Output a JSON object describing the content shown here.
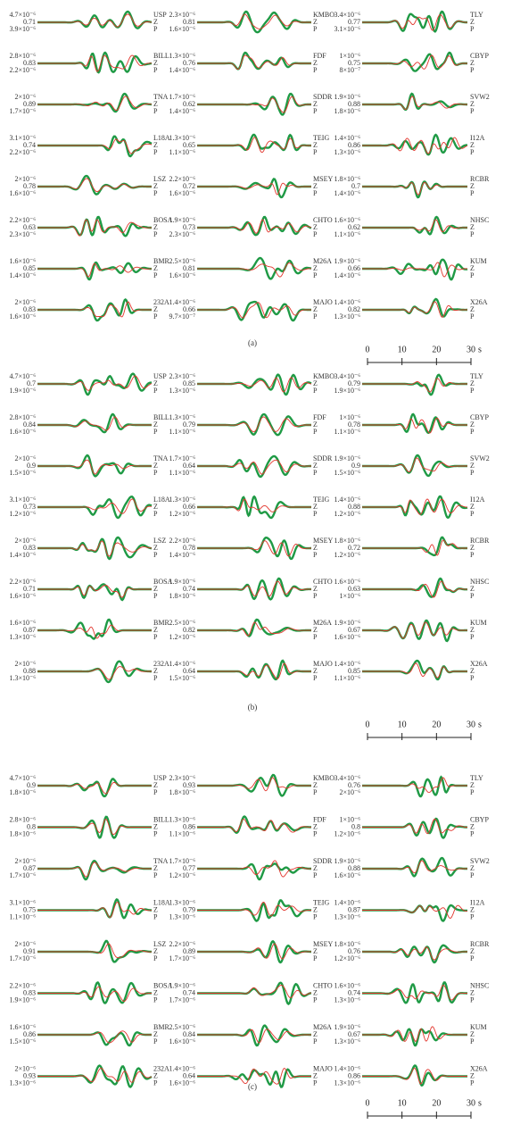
{
  "panels": [
    {
      "label": "(a)",
      "component": "Z",
      "phase": "P",
      "columns": [
        [
          {
            "station": "USP",
            "amp": "4.7×10⁻⁶",
            "cc": 0.71,
            "amp2": "3.9×10⁻⁶"
          },
          {
            "station": "BILL",
            "amp": "2.8×10⁻⁶",
            "cc": 0.83,
            "amp2": "2.2×10⁻⁶"
          },
          {
            "station": "TNA",
            "amp": "2×10⁻⁶",
            "cc": 0.89,
            "amp2": "1.7×10⁻⁶"
          },
          {
            "station": "L18A",
            "amp": "3.1×10⁻⁶",
            "cc": 0.74,
            "amp2": "2.2×10⁻⁶"
          },
          {
            "station": "LSZ",
            "amp": "2×10⁻⁶",
            "cc": 0.78,
            "amp2": "1.6×10⁻⁶"
          },
          {
            "station": "BOSA",
            "amp": "2.2×10⁻⁶",
            "cc": 0.63,
            "amp2": "2.3×10⁻⁶"
          },
          {
            "station": "BMR",
            "amp": "1.6×10⁻⁶",
            "cc": 0.85,
            "amp2": "1.4×10⁻⁶"
          },
          {
            "station": "232A",
            "amp": "2×10⁻⁶",
            "cc": 0.83,
            "amp2": "1.6×10⁻⁶"
          }
        ],
        [
          {
            "station": "KMBO",
            "amp": "2.3×10⁻⁶",
            "cc": 0.81,
            "amp2": "1.6×10⁻⁶"
          },
          {
            "station": "FDF",
            "amp": "1.3×10⁻⁶",
            "cc": 0.76,
            "amp2": "1.4×10⁻⁶"
          },
          {
            "station": "SDDR",
            "amp": "1.7×10⁻⁶",
            "cc": 0.62,
            "amp2": "1.4×10⁻⁶"
          },
          {
            "station": "TEIG",
            "amp": "1.3×10⁻⁶",
            "cc": 0.65,
            "amp2": "1.1×10⁻⁶"
          },
          {
            "station": "MSEY",
            "amp": "2.2×10⁻⁶",
            "cc": 0.72,
            "amp2": "1.6×10⁻⁶"
          },
          {
            "station": "CHTO",
            "amp": "1.9×10⁻⁶",
            "cc": 0.73,
            "amp2": "2.3×10⁻⁶"
          },
          {
            "station": "M26A",
            "amp": "2.5×10⁻⁶",
            "cc": 0.81,
            "amp2": "1.6×10⁻⁶"
          },
          {
            "station": "MAJO",
            "amp": "1.4×10⁻⁶",
            "cc": 0.66,
            "amp2": "9.7×10⁻⁷"
          }
        ],
        [
          {
            "station": "TLY",
            "amp": "3.4×10⁻⁶",
            "cc": 0.77,
            "amp2": "3.1×10⁻⁶"
          },
          {
            "station": "CBYP",
            "amp": "1×10⁻⁶",
            "cc": 0.75,
            "amp2": "8×10⁻⁷"
          },
          {
            "station": "SVW2",
            "amp": "1.9×10⁻⁶",
            "cc": 0.88,
            "amp2": "1.8×10⁻⁶"
          },
          {
            "station": "I12A",
            "amp": "1.4×10⁻⁶",
            "cc": 0.86,
            "amp2": "1.3×10⁻⁶"
          },
          {
            "station": "RCBR",
            "amp": "1.8×10⁻⁶",
            "cc": 0.7,
            "amp2": "1.4×10⁻⁶"
          },
          {
            "station": "NHSC",
            "amp": "1.6×10⁻⁶",
            "cc": 0.62,
            "amp2": "1.1×10⁻⁶"
          },
          {
            "station": "KUM",
            "amp": "1.9×10⁻⁶",
            "cc": 0.66,
            "amp2": "1.4×10⁻⁶"
          },
          {
            "station": "X26A",
            "amp": "1.4×10⁻⁶",
            "cc": 0.82,
            "amp2": "1.3×10⁻⁶"
          }
        ]
      ]
    },
    {
      "label": "(b)",
      "component": "Z",
      "phase": "P",
      "columns": [
        [
          {
            "station": "USP",
            "amp": "4.7×10⁻⁶",
            "cc": 0.7,
            "amp2": "1.9×10⁻⁶"
          },
          {
            "station": "BILL",
            "amp": "2.8×10⁻⁶",
            "cc": 0.84,
            "amp2": "1.6×10⁻⁶"
          },
          {
            "station": "TNA",
            "amp": "2×10⁻⁶",
            "cc": 0.9,
            "amp2": "1.5×10⁻⁶"
          },
          {
            "station": "L18A",
            "amp": "3.1×10⁻⁶",
            "cc": 0.73,
            "amp2": "1.2×10⁻⁶"
          },
          {
            "station": "LSZ",
            "amp": "2×10⁻⁶",
            "cc": 0.83,
            "amp2": "1.4×10⁻⁶"
          },
          {
            "station": "BOSA",
            "amp": "2.2×10⁻⁶",
            "cc": 0.71,
            "amp2": "1.6×10⁻⁶"
          },
          {
            "station": "BMR",
            "amp": "1.6×10⁻⁶",
            "cc": 0.87,
            "amp2": "1.3×10⁻⁶"
          },
          {
            "station": "232A",
            "amp": "2×10⁻⁶",
            "cc": 0.88,
            "amp2": "1.3×10⁻⁶"
          }
        ],
        [
          {
            "station": "KMBO",
            "amp": "2.3×10⁻⁶",
            "cc": 0.85,
            "amp2": "1.3×10⁻⁶"
          },
          {
            "station": "FDF",
            "amp": "1.3×10⁻⁶",
            "cc": 0.79,
            "amp2": "1.1×10⁻⁶"
          },
          {
            "station": "SDDR",
            "amp": "1.7×10⁻⁶",
            "cc": 0.64,
            "amp2": "1.1×10⁻⁶"
          },
          {
            "station": "TEIG",
            "amp": "1.3×10⁻⁶",
            "cc": 0.66,
            "amp2": "1.2×10⁻⁶"
          },
          {
            "station": "MSEY",
            "amp": "2.2×10⁻⁶",
            "cc": 0.78,
            "amp2": "1.4×10⁻⁶"
          },
          {
            "station": "CHTO",
            "amp": "1.9×10⁻⁶",
            "cc": 0.74,
            "amp2": "1.8×10⁻⁶"
          },
          {
            "station": "M26A",
            "amp": "2.5×10⁻⁶",
            "cc": 0.82,
            "amp2": "1.2×10⁻⁶"
          },
          {
            "station": "MAJO",
            "amp": "1.4×10⁻⁶",
            "cc": 0.64,
            "amp2": "1.5×10⁻⁶"
          }
        ],
        [
          {
            "station": "TLY",
            "amp": "3.4×10⁻⁶",
            "cc": 0.79,
            "amp2": "1.9×10⁻⁶"
          },
          {
            "station": "CBYP",
            "amp": "1×10⁻⁶",
            "cc": 0.78,
            "amp2": "1.1×10⁻⁶"
          },
          {
            "station": "SVW2",
            "amp": "1.9×10⁻⁶",
            "cc": 0.9,
            "amp2": "1.5×10⁻⁶"
          },
          {
            "station": "I12A",
            "amp": "1.4×10⁻⁶",
            "cc": 0.88,
            "amp2": "1.2×10⁻⁶"
          },
          {
            "station": "RCBR",
            "amp": "1.8×10⁻⁶",
            "cc": 0.72,
            "amp2": "1.2×10⁻⁶"
          },
          {
            "station": "NHSC",
            "amp": "1.6×10⁻⁶",
            "cc": 0.63,
            "amp2": "1×10⁻⁶"
          },
          {
            "station": "KUM",
            "amp": "1.9×10⁻⁶",
            "cc": 0.67,
            "amp2": "1.6×10⁻⁶"
          },
          {
            "station": "X26A",
            "amp": "1.4×10⁻⁶",
            "cc": 0.85,
            "amp2": "1.1×10⁻⁶"
          }
        ]
      ]
    },
    {
      "label": "(c)",
      "component": "Z",
      "phase": "P",
      "columns": [
        [
          {
            "station": "USP",
            "amp": "4.7×10⁻⁶",
            "cc": 0.9,
            "amp2": "1.8×10⁻⁶"
          },
          {
            "station": "BILL",
            "amp": "2.8×10⁻⁶",
            "cc": 0.8,
            "amp2": "1.8×10⁻⁶"
          },
          {
            "station": "TNA",
            "amp": "2×10⁻⁶",
            "cc": 0.87,
            "amp2": "1.7×10⁻⁶"
          },
          {
            "station": "L18A",
            "amp": "3.1×10⁻⁶",
            "cc": 0.75,
            "amp2": "1.1×10⁻⁶"
          },
          {
            "station": "LSZ",
            "amp": "2×10⁻⁶",
            "cc": 0.91,
            "amp2": "1.7×10⁻⁶"
          },
          {
            "station": "BOSA",
            "amp": "2.2×10⁻⁶",
            "cc": 0.83,
            "amp2": "1.9×10⁻⁶"
          },
          {
            "station": "BMR",
            "amp": "1.6×10⁻⁶",
            "cc": 0.86,
            "amp2": "1.5×10⁻⁶"
          },
          {
            "station": "232A",
            "amp": "2×10⁻⁶",
            "cc": 0.93,
            "amp2": "1.3×10⁻⁶"
          }
        ],
        [
          {
            "station": "KMBO",
            "amp": "2.3×10⁻⁶",
            "cc": 0.93,
            "amp2": "1.8×10⁻⁶"
          },
          {
            "station": "FDF",
            "amp": "1.3×10⁻⁶",
            "cc": 0.86,
            "amp2": "1.1×10⁻⁶"
          },
          {
            "station": "SDDR",
            "amp": "1.7×10⁻⁶",
            "cc": 0.77,
            "amp2": "1.2×10⁻⁶"
          },
          {
            "station": "TEIG",
            "amp": "1.3×10⁻⁶",
            "cc": 0.79,
            "amp2": "1.3×10⁻⁶"
          },
          {
            "station": "MSEY",
            "amp": "2.2×10⁻⁶",
            "cc": 0.89,
            "amp2": "1.7×10⁻⁶"
          },
          {
            "station": "CHTO",
            "amp": "1.9×10⁻⁶",
            "cc": 0.74,
            "amp2": "1.7×10⁻⁶"
          },
          {
            "station": "M26A",
            "amp": "2.5×10⁻⁶",
            "cc": 0.84,
            "amp2": "1.6×10⁻⁶"
          },
          {
            "station": "MAJO",
            "amp": "1.4×10⁻⁶",
            "cc": 0.64,
            "amp2": "1.6×10⁻⁶"
          }
        ],
        [
          {
            "station": "TLY",
            "amp": "3.4×10⁻⁶",
            "cc": 0.76,
            "amp2": "2×10⁻⁶"
          },
          {
            "station": "CBYP",
            "amp": "1×10⁻⁶",
            "cc": 0.8,
            "amp2": "1.2×10⁻⁶"
          },
          {
            "station": "SVW2",
            "amp": "1.9×10⁻⁶",
            "cc": 0.88,
            "amp2": "1.6×10⁻⁶"
          },
          {
            "station": "I12A",
            "amp": "1.4×10⁻⁶",
            "cc": 0.87,
            "amp2": "1.3×10⁻⁶"
          },
          {
            "station": "RCBR",
            "amp": "1.8×10⁻⁶",
            "cc": 0.76,
            "amp2": "1.2×10⁻⁶"
          },
          {
            "station": "NHSC",
            "amp": "1.6×10⁻⁶",
            "cc": 0.74,
            "amp2": "1.3×10⁻⁶"
          },
          {
            "station": "KUM",
            "amp": "1.9×10⁻⁶",
            "cc": 0.67,
            "amp2": "1.3×10⁻⁶"
          },
          {
            "station": "X26A",
            "amp": "1.4×10⁻⁶",
            "cc": 0.86,
            "amp2": "1.3×10⁻⁶"
          }
        ]
      ]
    }
  ],
  "scale_bar": {
    "ticks": [
      0,
      10,
      20,
      30
    ],
    "unit": "s"
  }
}
